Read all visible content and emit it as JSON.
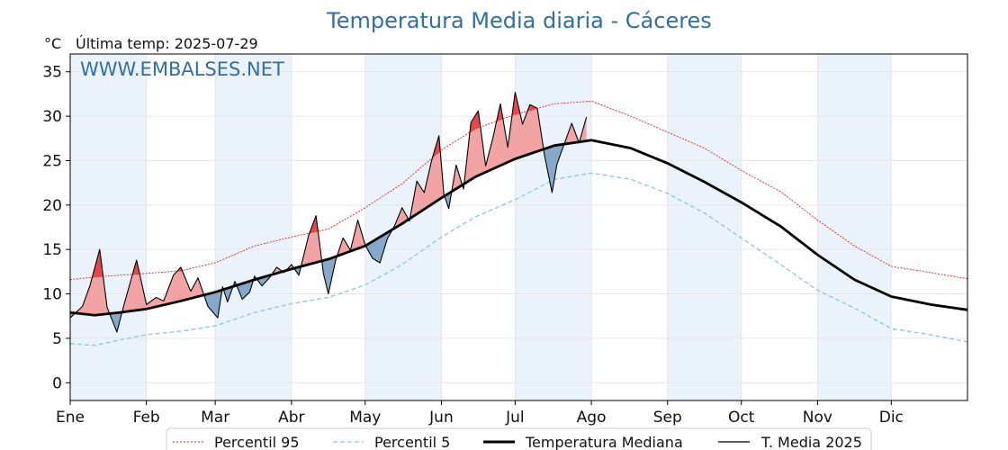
{
  "chart_data": {
    "type": "line",
    "title": "Temperatura Media diaria - Cáceres",
    "unit_label": "°C",
    "last_temp_label": "Última temp: 2025-07-29",
    "watermark": "WWW.EMBALSES.NET",
    "xlabel": "",
    "ylabel": "",
    "ylim": [
      -2,
      37
    ],
    "yticks": [
      0,
      5,
      10,
      15,
      20,
      25,
      30,
      35
    ],
    "x_domain_days": [
      0,
      365
    ],
    "months": [
      "Ene",
      "Feb",
      "Mar",
      "Abr",
      "May",
      "Jun",
      "Jul",
      "Ago",
      "Sep",
      "Oct",
      "Nov",
      "Dic"
    ],
    "month_start_days": [
      0,
      31,
      59,
      90,
      120,
      151,
      181,
      212,
      243,
      273,
      304,
      334
    ],
    "grid": true,
    "legend_position": "bottom",
    "colors": {
      "p95": "#e8201c",
      "p5": "#8cc6dc",
      "median": "#000000",
      "current": "#000000",
      "above_fill": "#f2a3a3",
      "above_extreme_fill": "#e8474a",
      "below_fill": "#86a9c9",
      "band": "#eaf3fb"
    },
    "series": [
      {
        "name": "Percentil 95",
        "x": [
          0,
          10,
          20,
          31,
          45,
          59,
          75,
          90,
          105,
          120,
          135,
          151,
          165,
          181,
          197,
          212,
          228,
          243,
          258,
          273,
          289,
          304,
          319,
          334,
          350,
          365
        ],
        "values": [
          11.6,
          11.9,
          12.1,
          12.3,
          12.6,
          13.5,
          15.4,
          16.4,
          17.3,
          19.7,
          22.4,
          26.2,
          28.6,
          30.2,
          31.4,
          31.7,
          30.0,
          28.2,
          26.4,
          23.9,
          21.5,
          18.3,
          15.4,
          13.1,
          12.4,
          11.7
        ]
      },
      {
        "name": "Percentil 5",
        "x": [
          0,
          10,
          20,
          31,
          45,
          59,
          75,
          90,
          105,
          120,
          135,
          151,
          165,
          181,
          197,
          212,
          228,
          243,
          258,
          273,
          289,
          304,
          319,
          334,
          350,
          365
        ],
        "values": [
          4.4,
          4.2,
          4.8,
          5.4,
          5.8,
          6.4,
          7.9,
          8.9,
          9.6,
          11.0,
          13.3,
          16.4,
          18.7,
          20.6,
          22.9,
          23.6,
          22.9,
          21.3,
          19.1,
          16.3,
          13.3,
          10.4,
          8.4,
          6.1,
          5.4,
          4.6
        ]
      },
      {
        "name": "Temperatura Mediana",
        "x": [
          0,
          10,
          20,
          31,
          45,
          59,
          75,
          90,
          105,
          120,
          135,
          151,
          165,
          181,
          197,
          212,
          228,
          243,
          258,
          273,
          289,
          304,
          319,
          334,
          350,
          365
        ],
        "values": [
          7.9,
          7.6,
          7.9,
          8.3,
          9.2,
          10.2,
          11.6,
          12.8,
          13.9,
          15.4,
          17.9,
          20.8,
          23.2,
          25.2,
          26.7,
          27.3,
          26.4,
          24.7,
          22.6,
          20.3,
          17.6,
          14.4,
          11.6,
          9.7,
          8.8,
          8.2
        ]
      },
      {
        "name": "T. Media 2025",
        "x": [
          0,
          5,
          8,
          12,
          15,
          19,
          22,
          27,
          31,
          35,
          38,
          42,
          45,
          49,
          52,
          56,
          60,
          62,
          64,
          67,
          70,
          73,
          75,
          78,
          81,
          84,
          87,
          90,
          93,
          97,
          100,
          103,
          105,
          108,
          111,
          114,
          117,
          120,
          123,
          126,
          129,
          132,
          135,
          138,
          141,
          144,
          147,
          150,
          152,
          154,
          157,
          160,
          163,
          166,
          169,
          172,
          175,
          178,
          181,
          184,
          187,
          190,
          193,
          196,
          198,
          201,
          204,
          207,
          210
        ],
        "values": [
          7.3,
          8.6,
          10.9,
          15.0,
          8.5,
          5.7,
          8.9,
          13.8,
          8.8,
          9.6,
          9.2,
          12.1,
          13.0,
          10.3,
          11.8,
          8.6,
          7.3,
          10.8,
          9.1,
          11.4,
          9.4,
          10.2,
          12.0,
          10.9,
          11.8,
          13.0,
          12.4,
          13.3,
          12.1,
          16.6,
          18.8,
          12.3,
          10.0,
          13.8,
          16.3,
          14.9,
          18.3,
          15.5,
          14.0,
          13.5,
          16.2,
          17.7,
          19.7,
          18.2,
          22.7,
          21.4,
          25.0,
          27.8,
          21.2,
          19.6,
          24.5,
          21.8,
          29.3,
          30.6,
          24.4,
          27.6,
          31.4,
          26.5,
          32.7,
          29.1,
          31.3,
          30.9,
          25.5,
          21.4,
          24.6,
          26.9,
          29.2,
          27.0,
          29.9
        ]
      }
    ]
  }
}
